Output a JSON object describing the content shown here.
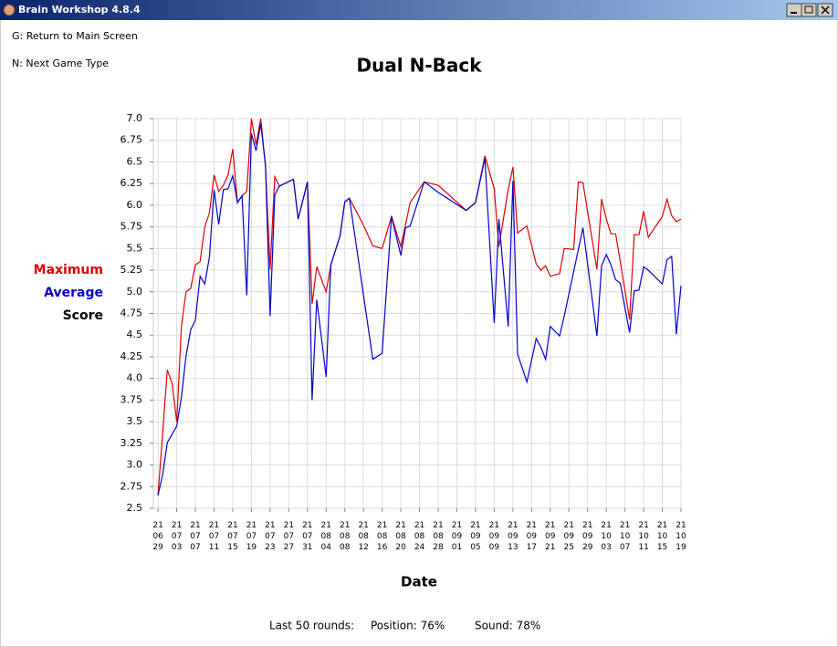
{
  "window": {
    "title": "Brain Workshop 4.8.4"
  },
  "hints": [
    "G: Return to Main Screen",
    "N: Next Game Type"
  ],
  "stats": {
    "rounds": "Last 50 rounds:",
    "position": "Position: 76%",
    "sound": "Sound: 78%"
  },
  "chart_data": {
    "type": "line",
    "title": "Dual N-Back",
    "x_label": "Date",
    "y_label": "Score",
    "xlim": [
      "21\n06\n28",
      "21\n10\n19"
    ],
    "xticks": [
      "21\n06\n29",
      "21\n07\n03",
      "21\n07\n07",
      "21\n07\n11",
      "21\n07\n15",
      "21\n07\n19",
      "21\n07\n23",
      "21\n07\n27",
      "21\n07\n31",
      "21\n08\n04",
      "21\n08\n08",
      "21\n08\n12",
      "21\n08\n16",
      "21\n08\n20",
      "21\n08\n24",
      "21\n08\n28",
      "21\n09\n01",
      "21\n09\n05",
      "21\n09\n09",
      "21\n09\n13",
      "21\n09\n17",
      "21\n09\n21",
      "21\n09\n25",
      "21\n09\n29",
      "21\n10\n03",
      "21\n10\n07",
      "21\n10\n11",
      "21\n10\n15",
      "21\n10\n19"
    ],
    "ylim": [
      2.5,
      7
    ],
    "yticks": [
      2.5,
      2.75,
      {
        "value": 3,
        "label": "3.0"
      },
      3.25,
      3.5,
      3.75,
      {
        "value": 4,
        "label": "4.0"
      },
      4.25,
      4.5,
      4.75,
      {
        "value": 5,
        "label": "5.0"
      },
      5.25,
      5.5,
      5.75,
      {
        "value": 6,
        "label": "6.0"
      },
      6.25,
      6.5,
      6.75,
      {
        "value": 7,
        "label": "7.0"
      }
    ],
    "grid": true,
    "series": [
      {
        "name": "Maximum",
        "color": "#e00000",
        "x": [
          "21\n06\n29",
          "21\n07\n01",
          "21\n07\n02",
          "21\n07\n03",
          "21\n07\n04",
          "21\n07\n05",
          "21\n07\n06",
          "21\n07\n07",
          "21\n07\n08",
          "21\n07\n09",
          "21\n07\n10",
          "21\n07\n11",
          "21\n07\n12",
          "21\n07\n13",
          "21\n07\n14",
          "21\n07\n15",
          "21\n07\n16",
          "21\n07\n17",
          "21\n07\n18",
          "21\n07\n19",
          "21\n07\n20",
          "21\n07\n21",
          "21\n07\n22",
          "21\n07\n23",
          "21\n07\n24",
          "21\n07\n25",
          "21\n07\n28",
          "21\n07\n29",
          "21\n07\n31",
          "21\n08\n01",
          "21\n08\n02",
          "21\n08\n04",
          "21\n08\n05",
          "21\n08\n07",
          "21\n08\n08",
          "21\n08\n09",
          "21\n08\n12",
          "21\n08\n14",
          "21\n08\n16",
          "21\n08\n18",
          "21\n08\n20",
          "21\n08\n22",
          "21\n08\n25",
          "21\n08\n28",
          "21\n09\n03",
          "21\n09\n05",
          "21\n09\n07",
          "21\n09\n09",
          "21\n09\n10",
          "21\n09\n12",
          "21\n09\n13",
          "21\n09\n14",
          "21\n09\n16",
          "21\n09\n18",
          "21\n09\n19",
          "21\n09\n20",
          "21\n09\n21",
          "21\n09\n23",
          "21\n09\n24",
          "21\n09\n26",
          "21\n09\n27",
          "21\n09\n28",
          "21\n10\n01",
          "21\n10\n02",
          "21\n10\n03",
          "21\n10\n04",
          "21\n10\n05",
          "21\n10\n06",
          "21\n10\n08",
          "21\n10\n09",
          "21\n10\n10",
          "21\n10\n11",
          "21\n10\n12",
          "21\n10\n15",
          "21\n10\n16",
          "21\n10\n17",
          "21\n10\n18",
          "21\n10\n19"
        ],
        "values": [
          2.65,
          4.1,
          3.94,
          3.5,
          4.6,
          5.0,
          5.04,
          5.31,
          5.35,
          5.75,
          5.91,
          6.35,
          6.16,
          6.23,
          6.35,
          6.65,
          6.03,
          6.11,
          6.16,
          7.0,
          6.7,
          7.0,
          6.45,
          5.26,
          6.33,
          6.22,
          6.3,
          5.84,
          6.27,
          4.86,
          5.29,
          5.0,
          5.31,
          5.65,
          6.04,
          6.08,
          5.77,
          5.53,
          5.5,
          5.87,
          5.52,
          6.03,
          6.27,
          6.23,
          5.94,
          6.03,
          6.57,
          6.19,
          5.52,
          6.18,
          6.44,
          5.68,
          5.76,
          5.32,
          5.25,
          5.3,
          5.18,
          5.21,
          5.5,
          5.49,
          6.27,
          6.26,
          5.26,
          6.07,
          5.84,
          5.67,
          5.67,
          5.35,
          4.68,
          5.66,
          5.66,
          5.93,
          5.63,
          5.87,
          6.07,
          5.88,
          5.81,
          5.84
        ]
      },
      {
        "name": "Average",
        "color": "#0000d0",
        "x": [
          "21\n06\n29",
          "21\n06\n30",
          "21\n07\n01",
          "21\n07\n03",
          "21\n07\n04",
          "21\n07\n05",
          "21\n07\n06",
          "21\n07\n07",
          "21\n07\n08",
          "21\n07\n09",
          "21\n07\n10",
          "21\n07\n11",
          "21\n07\n12",
          "21\n07\n13",
          "21\n07\n14",
          "21\n07\n15",
          "21\n07\n16",
          "21\n07\n17",
          "21\n07\n18",
          "21\n07\n19",
          "21\n07\n20",
          "21\n07\n21",
          "21\n07\n22",
          "21\n07\n23",
          "21\n07\n24",
          "21\n07\n25",
          "21\n07\n28",
          "21\n07\n29",
          "21\n07\n31",
          "21\n08\n01",
          "21\n08\n02",
          "21\n08\n04",
          "21\n08\n05",
          "21\n08\n07",
          "21\n08\n08",
          "21\n08\n09",
          "21\n08\n14",
          "21\n08\n16",
          "21\n08\n18",
          "21\n08\n20",
          "21\n08\n21",
          "21\n08\n22",
          "21\n08\n25",
          "21\n08\n28",
          "21\n09\n03",
          "21\n09\n05",
          "21\n09\n07",
          "21\n09\n09",
          "21\n09\n10",
          "21\n09\n12",
          "21\n09\n13",
          "21\n09\n14",
          "21\n09\n16",
          "21\n09\n18",
          "21\n09\n19",
          "21\n09\n20",
          "21\n09\n21",
          "21\n09\n23",
          "21\n09\n24",
          "21\n09\n28",
          "21\n10\n01",
          "21\n10\n02",
          "21\n10\n03",
          "21\n10\n04",
          "21\n10\n05",
          "21\n10\n06",
          "21\n10\n08",
          "21\n10\n09",
          "21\n10\n10",
          "21\n10\n11",
          "21\n10\n12",
          "21\n10\n15",
          "21\n10\n16",
          "21\n10\n17",
          "21\n10\n18",
          "21\n10\n19"
        ],
        "values": [
          2.65,
          2.89,
          3.26,
          3.45,
          3.78,
          4.26,
          4.56,
          4.67,
          5.18,
          5.09,
          5.4,
          6.18,
          5.78,
          6.18,
          6.19,
          6.34,
          6.03,
          6.11,
          4.96,
          6.83,
          6.63,
          6.94,
          6.47,
          4.72,
          6.12,
          6.22,
          6.3,
          5.84,
          6.27,
          3.75,
          4.91,
          4.02,
          5.31,
          5.65,
          6.04,
          6.08,
          4.22,
          4.29,
          5.87,
          5.42,
          5.74,
          5.76,
          6.27,
          6.15,
          5.94,
          6.03,
          6.54,
          4.64,
          5.84,
          4.6,
          6.28,
          4.28,
          3.96,
          4.46,
          4.36,
          4.22,
          4.6,
          4.49,
          4.72,
          5.74,
          4.49,
          5.3,
          5.43,
          5.31,
          5.14,
          5.1,
          4.53,
          5.01,
          5.02,
          5.29,
          5.25,
          5.09,
          5.37,
          5.41,
          4.51,
          5.07
        ]
      }
    ]
  }
}
